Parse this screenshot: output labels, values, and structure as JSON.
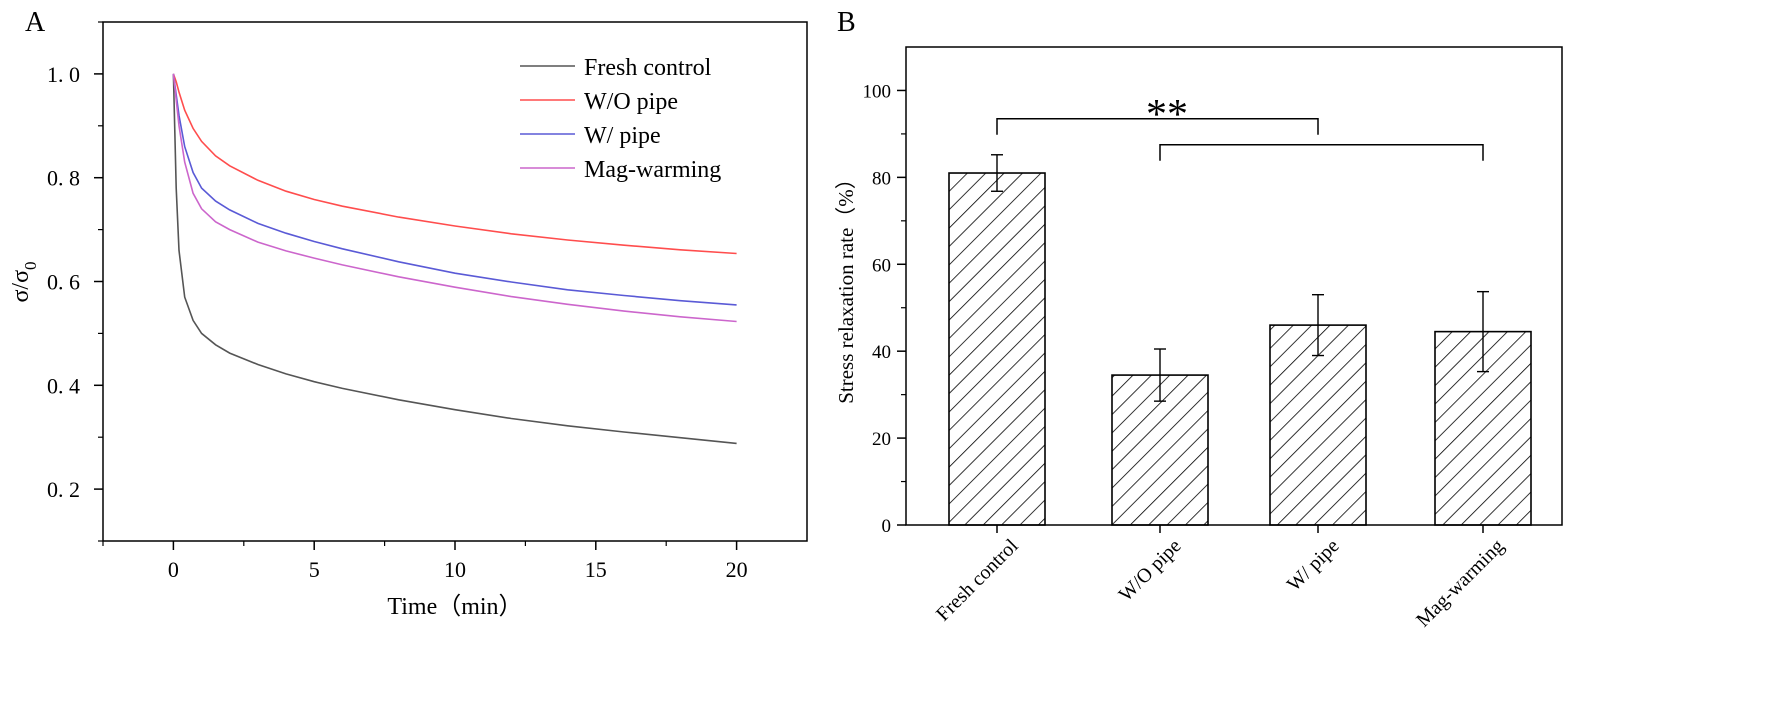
{
  "chart_data": [
    {
      "panel": "A",
      "type": "line",
      "xlabel": "Time（min）",
      "ylabel_main": "σ/σ",
      "ylabel_sub": "0",
      "xlim": [
        -2.5,
        22.5
      ],
      "ylim": [
        0.1,
        1.1
      ],
      "xticks": [
        0,
        5,
        10,
        15,
        20
      ],
      "xtick_labels": [
        "0",
        "5",
        "10",
        "15",
        "20"
      ],
      "yticks": [
        0.2,
        0.4,
        0.6,
        0.8,
        1.0
      ],
      "ytick_labels": [
        "0. 2",
        "0. 4",
        "0. 6",
        "0. 8",
        "1. 0"
      ],
      "x": [
        0,
        0.1,
        0.2,
        0.4,
        0.7,
        1.0,
        1.5,
        2,
        3,
        4,
        5,
        6,
        8,
        10,
        12,
        14,
        16,
        18,
        20
      ],
      "series": [
        {
          "name": "Fresh control",
          "color": "#555555",
          "values": [
            1.0,
            0.78,
            0.66,
            0.57,
            0.525,
            0.5,
            0.478,
            0.462,
            0.44,
            0.422,
            0.407,
            0.394,
            0.372,
            0.353,
            0.336,
            0.322,
            0.31,
            0.299,
            0.288
          ]
        },
        {
          "name": "W/O pipe",
          "color": "#ff4d4d",
          "values": [
            1.0,
            0.985,
            0.965,
            0.93,
            0.895,
            0.87,
            0.842,
            0.823,
            0.795,
            0.774,
            0.758,
            0.745,
            0.724,
            0.707,
            0.692,
            0.68,
            0.67,
            0.661,
            0.654
          ]
        },
        {
          "name": "W/ pipe",
          "color": "#5a5ad6",
          "values": [
            1.0,
            0.96,
            0.92,
            0.86,
            0.81,
            0.78,
            0.755,
            0.738,
            0.712,
            0.693,
            0.677,
            0.663,
            0.638,
            0.616,
            0.599,
            0.584,
            0.573,
            0.563,
            0.555
          ]
        },
        {
          "name": "Mag-warming",
          "color": "#cc66cc",
          "values": [
            1.0,
            0.95,
            0.9,
            0.83,
            0.77,
            0.74,
            0.715,
            0.7,
            0.676,
            0.659,
            0.645,
            0.632,
            0.609,
            0.589,
            0.571,
            0.556,
            0.543,
            0.532,
            0.523
          ]
        }
      ]
    },
    {
      "panel": "B",
      "type": "bar",
      "ylabel": "Stress relaxation rate（%）",
      "ylim": [
        0,
        110
      ],
      "yticks": [
        0,
        20,
        40,
        60,
        80,
        100
      ],
      "ytick_labels": [
        "0",
        "20",
        "40",
        "60",
        "80",
        "100"
      ],
      "categories": [
        "Fresh control",
        "W/O  pipe",
        "W/ pipe",
        "Mag-warming"
      ],
      "values": [
        81,
        34.5,
        46,
        44.5
      ],
      "errors": [
        4.2,
        6,
        7,
        9.2
      ],
      "annotation": "**",
      "brackets": [
        {
          "from": 0,
          "to": 2,
          "level": 93.5
        },
        {
          "from": 1,
          "to": 3,
          "level": 87.5
        }
      ]
    }
  ]
}
